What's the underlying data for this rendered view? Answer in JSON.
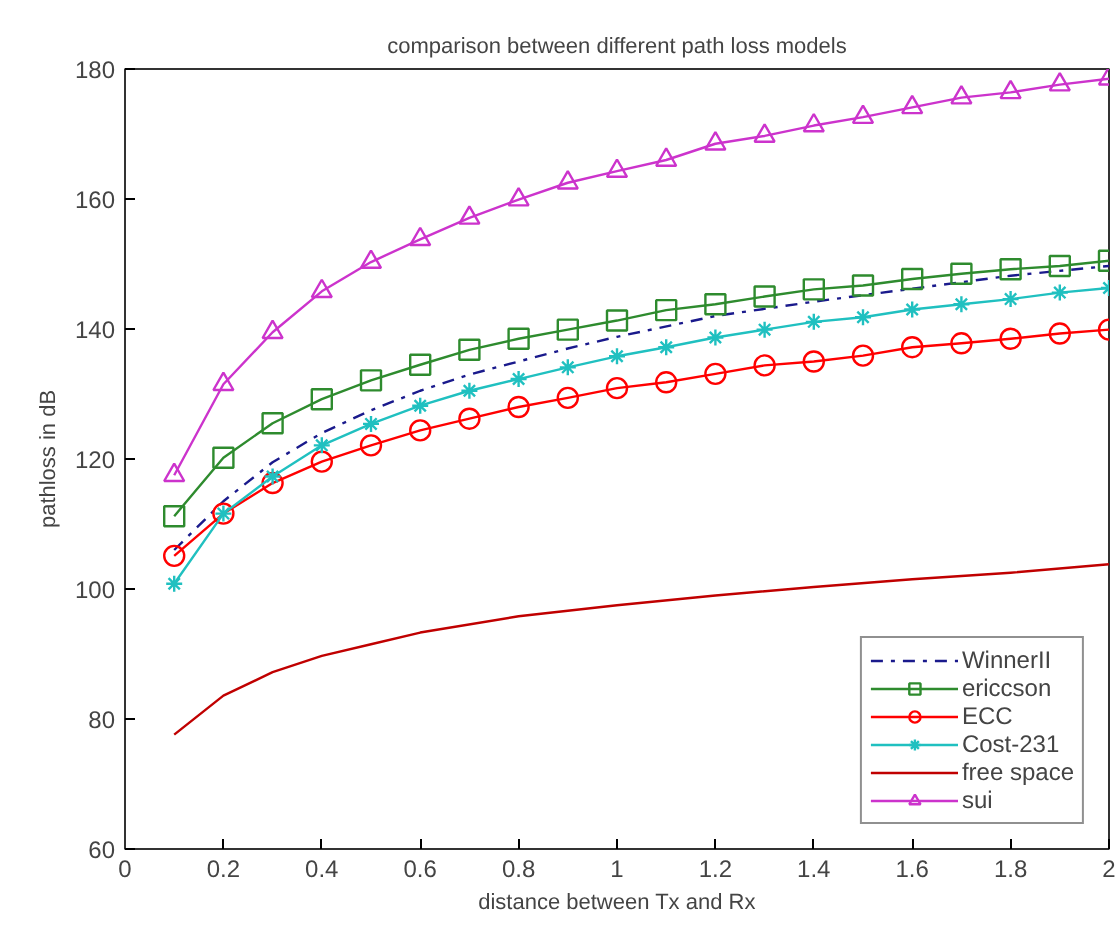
{
  "chart_data": {
    "type": "line",
    "title": "comparison between different path loss models",
    "xlabel": "distance between Tx and Rx",
    "ylabel": "pathloss in dB",
    "xlim": [
      0,
      2
    ],
    "ylim": [
      60,
      180
    ],
    "xticks": [
      0,
      0.2,
      0.4,
      0.6,
      0.8,
      1,
      1.2,
      1.4,
      1.6,
      1.8,
      2
    ],
    "yticks": [
      60,
      80,
      100,
      120,
      140,
      160,
      180
    ],
    "grid": false,
    "legend": "bottom right",
    "series": [
      {
        "name": "WinnerII",
        "color": "#1a1a8c",
        "line_style": "dashed",
        "marker": "none",
        "x": [
          0.1,
          0.2,
          0.3,
          0.4,
          0.5,
          0.6,
          0.7,
          0.8,
          0.9,
          1.0,
          1.2,
          1.4,
          1.6,
          1.8,
          2.0
        ],
        "values": [
          106,
          113.5,
          119.5,
          124,
          127.5,
          130.5,
          133,
          135,
          137,
          138.8,
          142,
          144.2,
          146.2,
          148.2,
          149.7
        ]
      },
      {
        "name": "ericcson",
        "color": "#2e8b2e",
        "line_style": "solid",
        "marker": "square",
        "x": [
          0.1,
          0.2,
          0.3,
          0.4,
          0.5,
          0.6,
          0.7,
          0.8,
          0.9,
          1.0,
          1.1,
          1.2,
          1.3,
          1.4,
          1.5,
          1.6,
          1.7,
          1.8,
          1.9,
          2.0
        ],
        "values": [
          111.2,
          120.2,
          125.5,
          129.2,
          132.1,
          134.5,
          136.8,
          138.5,
          139.9,
          141.3,
          142.9,
          143.8,
          145,
          146.1,
          146.7,
          147.7,
          148.5,
          149.2,
          149.7,
          150.5
        ]
      },
      {
        "name": "ECC",
        "color": "#ff0000",
        "line_style": "solid",
        "marker": "circle",
        "x": [
          0.1,
          0.2,
          0.3,
          0.4,
          0.5,
          0.6,
          0.7,
          0.8,
          0.9,
          1.0,
          1.1,
          1.2,
          1.3,
          1.4,
          1.5,
          1.6,
          1.7,
          1.8,
          1.9,
          2.0
        ],
        "values": [
          105.1,
          111.6,
          116.3,
          119.6,
          122.1,
          124.4,
          126.2,
          128,
          129.4,
          130.9,
          131.8,
          133.1,
          134.4,
          135,
          135.9,
          137.2,
          137.8,
          138.5,
          139.3,
          139.9
        ]
      },
      {
        "name": "Cost-231",
        "color": "#20c0c0",
        "line_style": "solid",
        "marker": "cross",
        "x": [
          0.1,
          0.2,
          0.3,
          0.4,
          0.5,
          0.6,
          0.7,
          0.8,
          0.9,
          1.0,
          1.1,
          1.2,
          1.3,
          1.4,
          1.5,
          1.6,
          1.7,
          1.8,
          1.9,
          2.0
        ],
        "values": [
          100.8,
          111.6,
          117.3,
          122.1,
          125.4,
          128.2,
          130.5,
          132.3,
          134.1,
          135.8,
          137.2,
          138.7,
          139.9,
          141.1,
          141.8,
          143,
          143.8,
          144.6,
          145.6,
          146.3
        ]
      },
      {
        "name": "free space",
        "color": "#c00000",
        "line_style": "solid",
        "marker": "none",
        "x": [
          0.1,
          0.2,
          0.3,
          0.4,
          0.5,
          0.6,
          0.8,
          1.0,
          1.2,
          1.4,
          1.6,
          1.8,
          2.0
        ],
        "values": [
          77.6,
          83.6,
          87.2,
          89.7,
          91.5,
          93.3,
          95.8,
          97.5,
          99,
          100.3,
          101.5,
          102.5,
          103.8
        ]
      },
      {
        "name": "sui",
        "color": "#cc33cc",
        "line_style": "solid",
        "marker": "triangle",
        "x": [
          0.1,
          0.2,
          0.3,
          0.4,
          0.5,
          0.6,
          0.7,
          0.8,
          0.9,
          1.0,
          1.1,
          1.2,
          1.3,
          1.4,
          1.5,
          1.6,
          1.7,
          1.8,
          1.9,
          2.0
        ],
        "values": [
          117.5,
          131.5,
          139.5,
          145.8,
          150.3,
          153.8,
          157.1,
          159.9,
          162.5,
          164.3,
          166,
          168.5,
          169.7,
          171.3,
          172.6,
          174.1,
          175.6,
          176.4,
          177.6,
          178.5
        ]
      }
    ]
  }
}
